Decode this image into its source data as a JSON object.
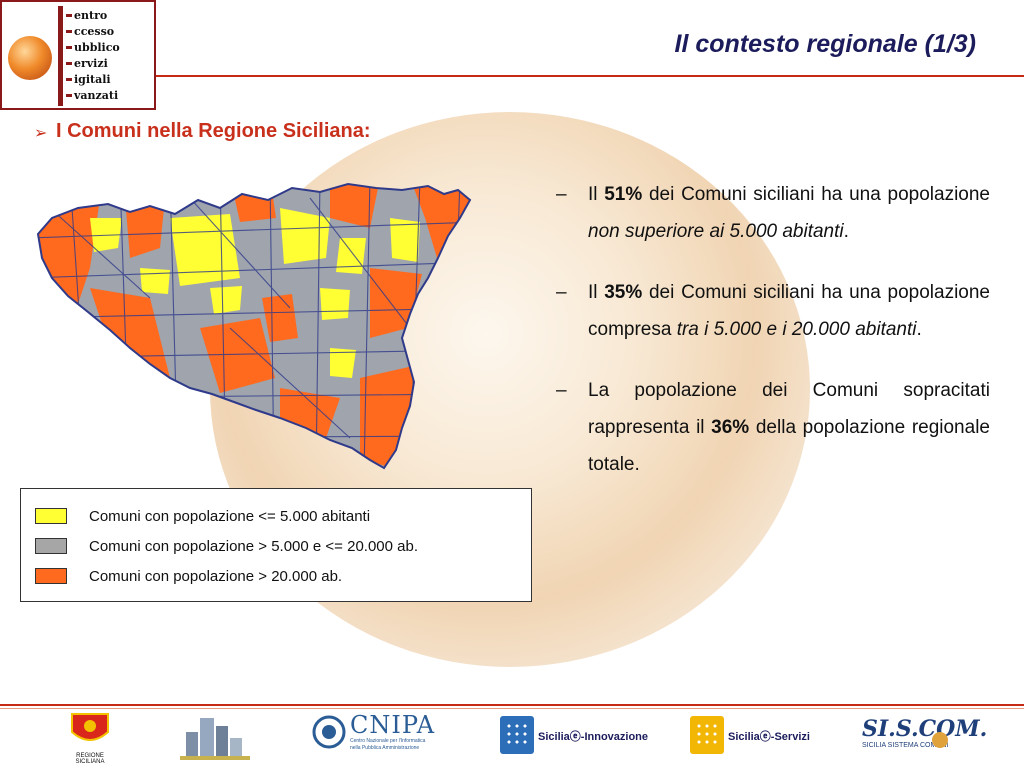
{
  "header": {
    "title": "Il contesto regionale (1/3)",
    "logo_words": [
      "entro",
      "ccesso",
      "ubblico",
      "ervizi",
      "igitali",
      "vanzati"
    ]
  },
  "subtitle": {
    "bullet": "➢",
    "text": "I Comuni nella Regione Siciliana:"
  },
  "legend": {
    "items": [
      {
        "label": "Comuni con popolazione <= 5.000 abitanti",
        "color": "#ffff33"
      },
      {
        "label": "Comuni con popolazione > 5.000 e <= 20.000 ab.",
        "color": "#a6a6a6"
      },
      {
        "label": "Comuni con popolazione > 20.000 ab.",
        "color": "#ff6a1f"
      }
    ]
  },
  "points": [
    {
      "dash": "–",
      "p1": "Il ",
      "b1": "51%",
      "p2": " dei Comuni siciliani ha una popolazione ",
      "i1": "non superiore ai 5.000 abitanti",
      "p3": "."
    },
    {
      "dash": "–",
      "p1": "Il ",
      "b1": "35%",
      "p2": " dei Comuni siciliani ha una popolazione compresa ",
      "i1": "tra i 5.000 e i 20.000 abitanti",
      "p3": "."
    },
    {
      "dash": "–",
      "p1": "La popolazione dei Comuni sopracitati rappresenta il ",
      "b1": "36%",
      "p2": " della popolazione regionale totale.",
      "i1": "",
      "p3": ""
    }
  ],
  "footer": {
    "region_label": "REGIONE SICILIANA",
    "cnipa_name": "CNIPA",
    "cnipa_sub1": "Centro Nazionale per l'Informatica",
    "cnipa_sub2": "nella Pubblica Amministrazione",
    "innovazione": "Siciliaⓔ-Innovazione",
    "servizi": "Siciliaⓔ-Servizi",
    "siscom": "SI.S.COM.",
    "siscom_sub": "SICILIA SISTEMA COMUNI"
  },
  "colors": {
    "accent_red": "#c62a14",
    "title_navy": "#1c1c5c"
  }
}
